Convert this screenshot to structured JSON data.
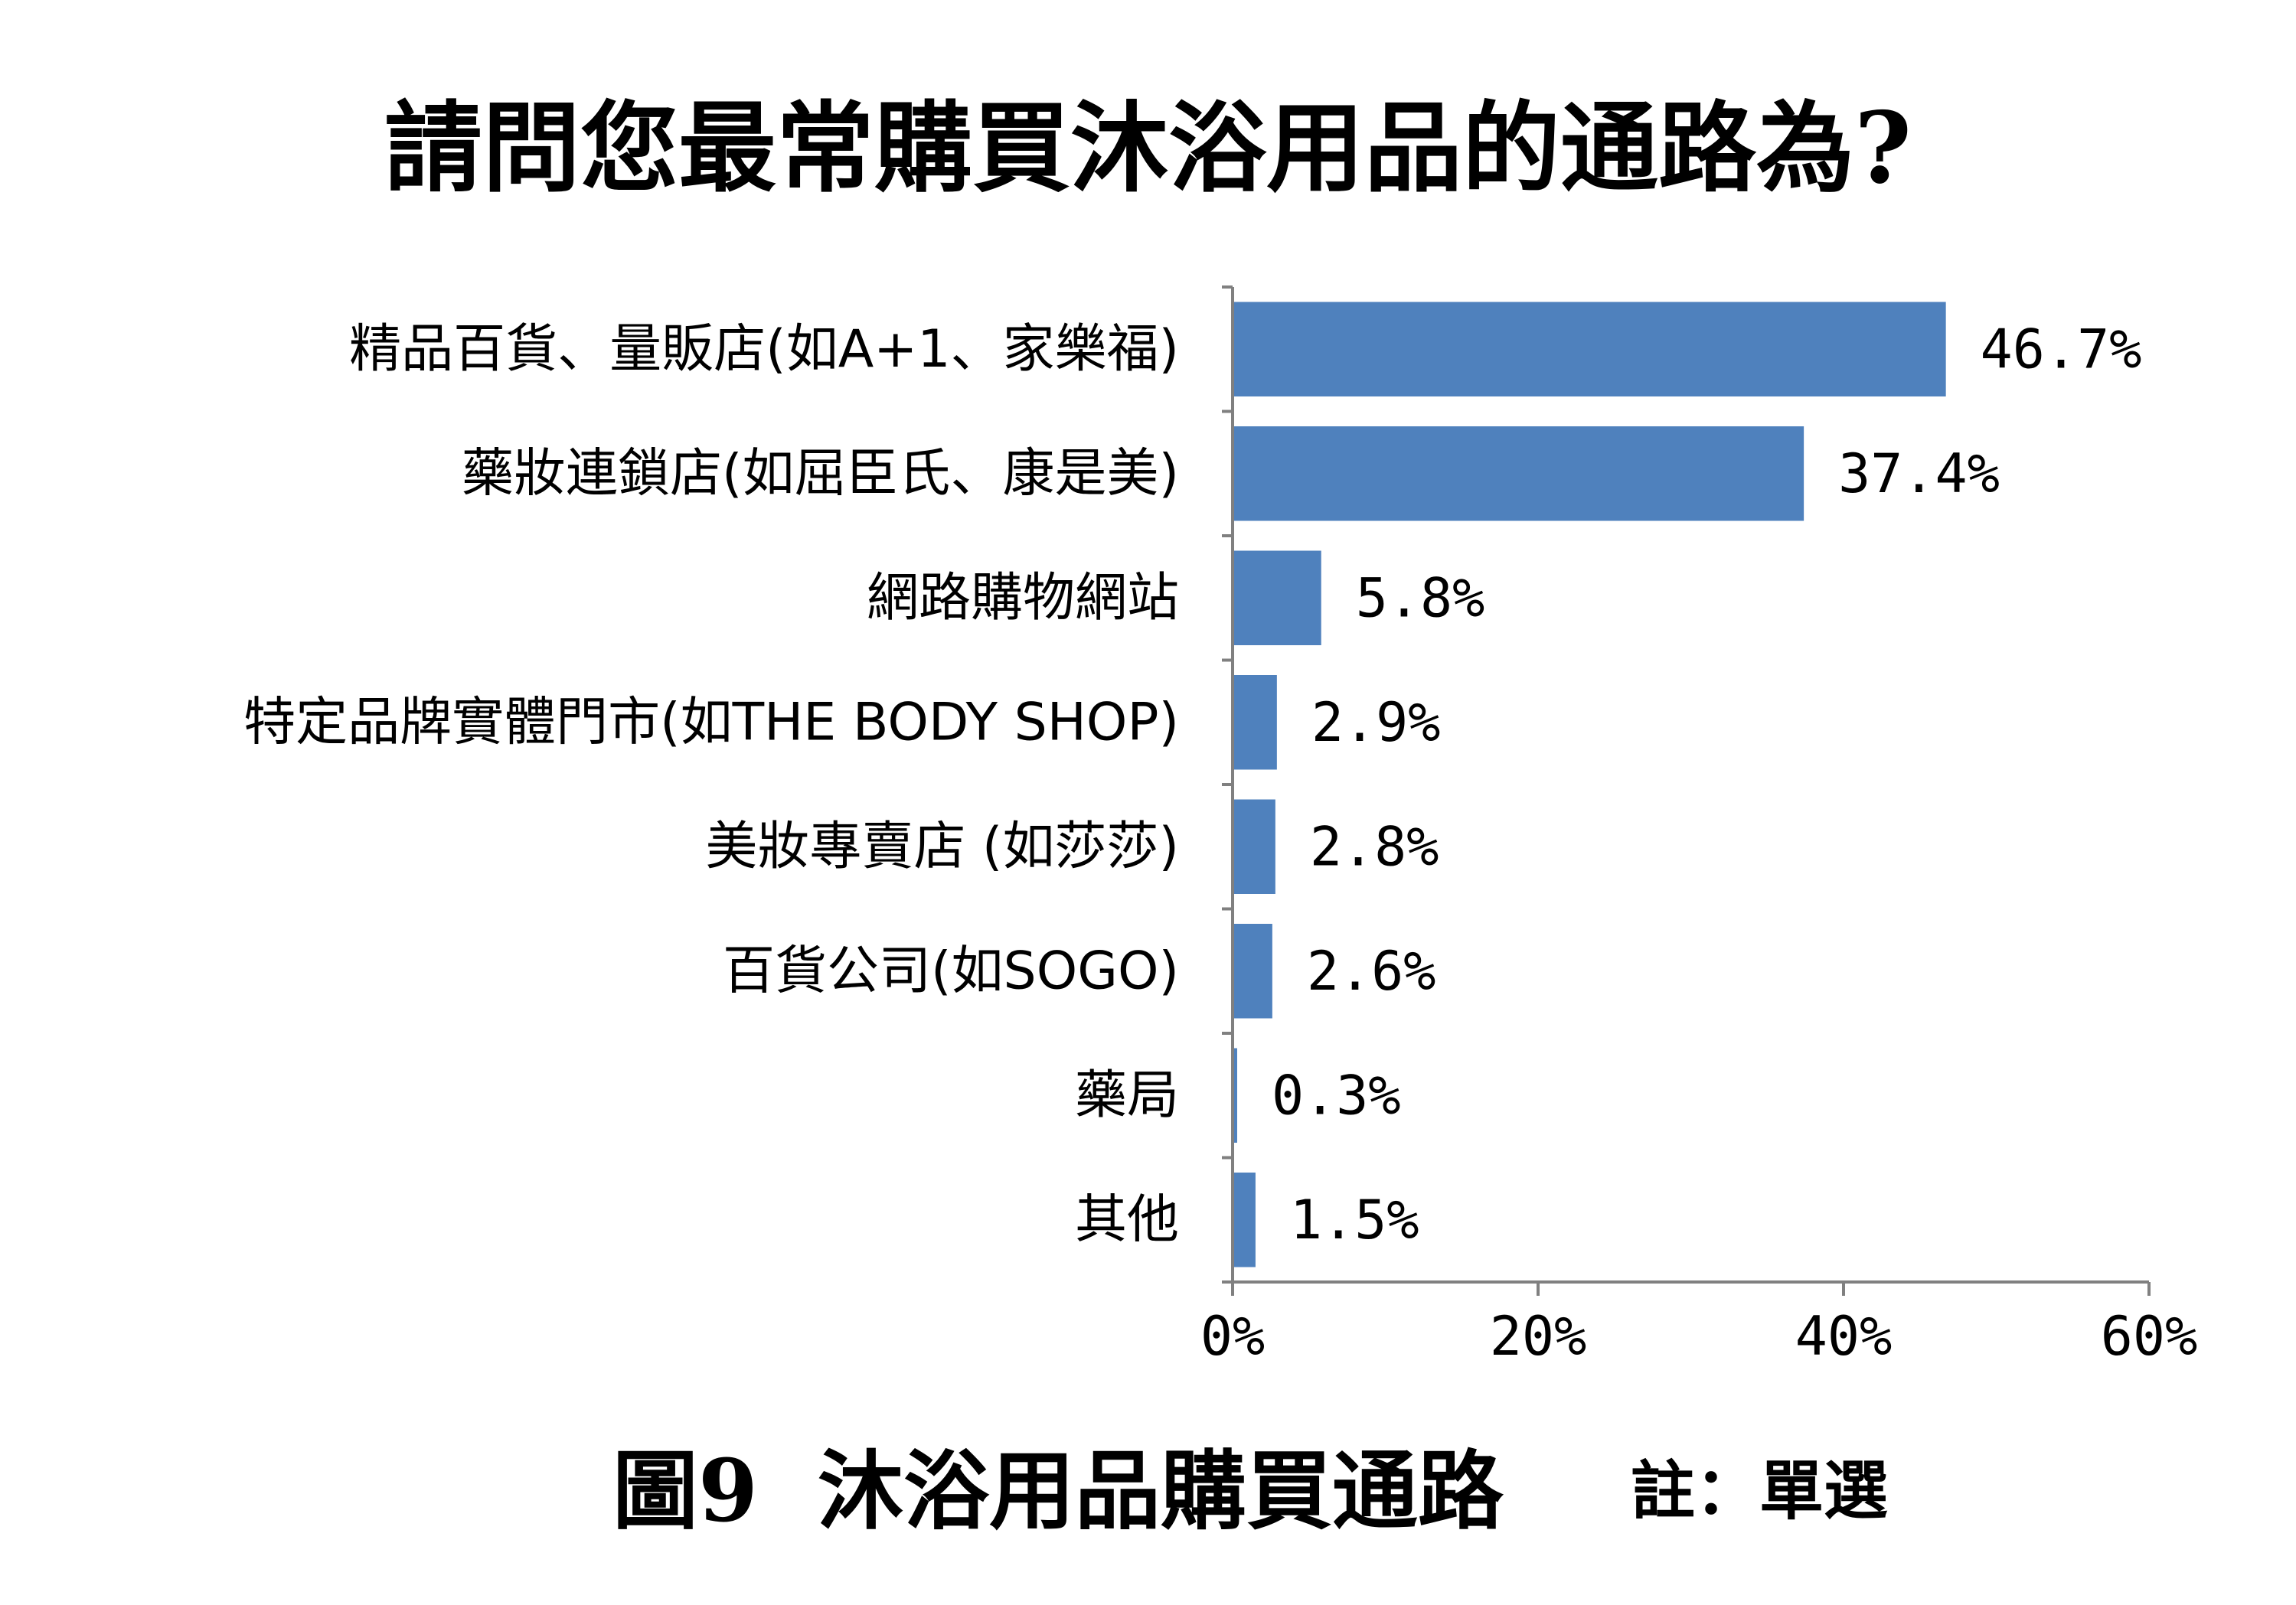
{
  "chart_data": {
    "type": "bar",
    "orientation": "horizontal",
    "title": "請問您最常購買沐浴用品的通路為?",
    "categories": [
      "精品百貨、量販店(如A+1、家樂福)",
      "藥妝連鎖店(如屈臣氏、康是美)",
      "網路購物網站",
      "特定品牌實體門市(如THE BODY SHOP)",
      "美妝專賣店 (如莎莎)",
      "百貨公司(如SOGO)",
      "藥局",
      "其他"
    ],
    "values": [
      46.7,
      37.4,
      5.8,
      2.9,
      2.8,
      2.6,
      0.3,
      1.5
    ],
    "value_labels": [
      "46.7%",
      "37.4%",
      "5.8%",
      "2.9%",
      "2.8%",
      "2.6%",
      "0.3%",
      "1.5%"
    ],
    "xlim": [
      0,
      60
    ],
    "xticks": [
      0,
      20,
      40,
      60
    ],
    "xtick_labels": [
      "0%",
      "20%",
      "40%",
      "60%"
    ],
    "xlabel": "",
    "ylabel": "",
    "grid": false,
    "legend": "none",
    "bar_color": "#4F81BD",
    "axis_color": "#808080"
  },
  "caption": {
    "figure": "圖9  沐浴用品購買通路",
    "note": "註：單選"
  }
}
